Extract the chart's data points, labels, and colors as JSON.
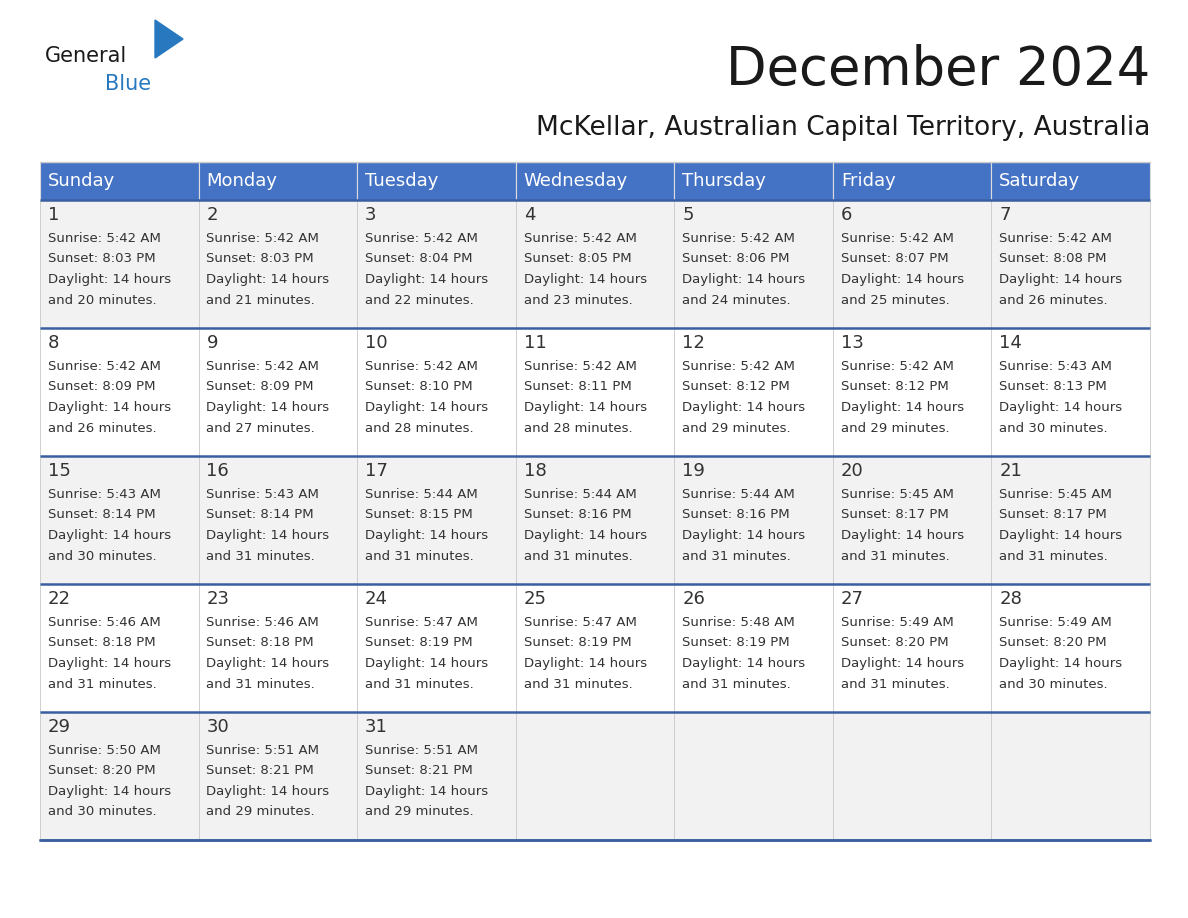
{
  "title": "December 2024",
  "subtitle": "McKellar, Australian Capital Territory, Australia",
  "header_color": "#4472C4",
  "header_text_color": "#FFFFFF",
  "cell_bg_even": "#F2F2F2",
  "cell_bg_odd": "#FFFFFF",
  "separator_color": "#3A5FA0",
  "grid_color": "#CCCCCC",
  "day_headers": [
    "Sunday",
    "Monday",
    "Tuesday",
    "Wednesday",
    "Thursday",
    "Friday",
    "Saturday"
  ],
  "title_fontsize": 38,
  "subtitle_fontsize": 19,
  "header_fontsize": 13,
  "day_num_fontsize": 13,
  "cell_fontsize": 9.5,
  "logo_text1": "General",
  "logo_text2": "Blue",
  "logo_color1": "#1a1a1a",
  "logo_color2": "#2878C0",
  "logo_triangle_color": "#2878C0",
  "days_data": [
    {
      "day": 1,
      "row": 0,
      "col": 0,
      "sunrise": "5:42 AM",
      "sunset": "8:03 PM",
      "daylight_hours": 14,
      "daylight_minutes": 20
    },
    {
      "day": 2,
      "row": 0,
      "col": 1,
      "sunrise": "5:42 AM",
      "sunset": "8:03 PM",
      "daylight_hours": 14,
      "daylight_minutes": 21
    },
    {
      "day": 3,
      "row": 0,
      "col": 2,
      "sunrise": "5:42 AM",
      "sunset": "8:04 PM",
      "daylight_hours": 14,
      "daylight_minutes": 22
    },
    {
      "day": 4,
      "row": 0,
      "col": 3,
      "sunrise": "5:42 AM",
      "sunset": "8:05 PM",
      "daylight_hours": 14,
      "daylight_minutes": 23
    },
    {
      "day": 5,
      "row": 0,
      "col": 4,
      "sunrise": "5:42 AM",
      "sunset": "8:06 PM",
      "daylight_hours": 14,
      "daylight_minutes": 24
    },
    {
      "day": 6,
      "row": 0,
      "col": 5,
      "sunrise": "5:42 AM",
      "sunset": "8:07 PM",
      "daylight_hours": 14,
      "daylight_minutes": 25
    },
    {
      "day": 7,
      "row": 0,
      "col": 6,
      "sunrise": "5:42 AM",
      "sunset": "8:08 PM",
      "daylight_hours": 14,
      "daylight_minutes": 26
    },
    {
      "day": 8,
      "row": 1,
      "col": 0,
      "sunrise": "5:42 AM",
      "sunset": "8:09 PM",
      "daylight_hours": 14,
      "daylight_minutes": 26
    },
    {
      "day": 9,
      "row": 1,
      "col": 1,
      "sunrise": "5:42 AM",
      "sunset": "8:09 PM",
      "daylight_hours": 14,
      "daylight_minutes": 27
    },
    {
      "day": 10,
      "row": 1,
      "col": 2,
      "sunrise": "5:42 AM",
      "sunset": "8:10 PM",
      "daylight_hours": 14,
      "daylight_minutes": 28
    },
    {
      "day": 11,
      "row": 1,
      "col": 3,
      "sunrise": "5:42 AM",
      "sunset": "8:11 PM",
      "daylight_hours": 14,
      "daylight_minutes": 28
    },
    {
      "day": 12,
      "row": 1,
      "col": 4,
      "sunrise": "5:42 AM",
      "sunset": "8:12 PM",
      "daylight_hours": 14,
      "daylight_minutes": 29
    },
    {
      "day": 13,
      "row": 1,
      "col": 5,
      "sunrise": "5:42 AM",
      "sunset": "8:12 PM",
      "daylight_hours": 14,
      "daylight_minutes": 29
    },
    {
      "day": 14,
      "row": 1,
      "col": 6,
      "sunrise": "5:43 AM",
      "sunset": "8:13 PM",
      "daylight_hours": 14,
      "daylight_minutes": 30
    },
    {
      "day": 15,
      "row": 2,
      "col": 0,
      "sunrise": "5:43 AM",
      "sunset": "8:14 PM",
      "daylight_hours": 14,
      "daylight_minutes": 30
    },
    {
      "day": 16,
      "row": 2,
      "col": 1,
      "sunrise": "5:43 AM",
      "sunset": "8:14 PM",
      "daylight_hours": 14,
      "daylight_minutes": 31
    },
    {
      "day": 17,
      "row": 2,
      "col": 2,
      "sunrise": "5:44 AM",
      "sunset": "8:15 PM",
      "daylight_hours": 14,
      "daylight_minutes": 31
    },
    {
      "day": 18,
      "row": 2,
      "col": 3,
      "sunrise": "5:44 AM",
      "sunset": "8:16 PM",
      "daylight_hours": 14,
      "daylight_minutes": 31
    },
    {
      "day": 19,
      "row": 2,
      "col": 4,
      "sunrise": "5:44 AM",
      "sunset": "8:16 PM",
      "daylight_hours": 14,
      "daylight_minutes": 31
    },
    {
      "day": 20,
      "row": 2,
      "col": 5,
      "sunrise": "5:45 AM",
      "sunset": "8:17 PM",
      "daylight_hours": 14,
      "daylight_minutes": 31
    },
    {
      "day": 21,
      "row": 2,
      "col": 6,
      "sunrise": "5:45 AM",
      "sunset": "8:17 PM",
      "daylight_hours": 14,
      "daylight_minutes": 31
    },
    {
      "day": 22,
      "row": 3,
      "col": 0,
      "sunrise": "5:46 AM",
      "sunset": "8:18 PM",
      "daylight_hours": 14,
      "daylight_minutes": 31
    },
    {
      "day": 23,
      "row": 3,
      "col": 1,
      "sunrise": "5:46 AM",
      "sunset": "8:18 PM",
      "daylight_hours": 14,
      "daylight_minutes": 31
    },
    {
      "day": 24,
      "row": 3,
      "col": 2,
      "sunrise": "5:47 AM",
      "sunset": "8:19 PM",
      "daylight_hours": 14,
      "daylight_minutes": 31
    },
    {
      "day": 25,
      "row": 3,
      "col": 3,
      "sunrise": "5:47 AM",
      "sunset": "8:19 PM",
      "daylight_hours": 14,
      "daylight_minutes": 31
    },
    {
      "day": 26,
      "row": 3,
      "col": 4,
      "sunrise": "5:48 AM",
      "sunset": "8:19 PM",
      "daylight_hours": 14,
      "daylight_minutes": 31
    },
    {
      "day": 27,
      "row": 3,
      "col": 5,
      "sunrise": "5:49 AM",
      "sunset": "8:20 PM",
      "daylight_hours": 14,
      "daylight_minutes": 31
    },
    {
      "day": 28,
      "row": 3,
      "col": 6,
      "sunrise": "5:49 AM",
      "sunset": "8:20 PM",
      "daylight_hours": 14,
      "daylight_minutes": 30
    },
    {
      "day": 29,
      "row": 4,
      "col": 0,
      "sunrise": "5:50 AM",
      "sunset": "8:20 PM",
      "daylight_hours": 14,
      "daylight_minutes": 30
    },
    {
      "day": 30,
      "row": 4,
      "col": 1,
      "sunrise": "5:51 AM",
      "sunset": "8:21 PM",
      "daylight_hours": 14,
      "daylight_minutes": 29
    },
    {
      "day": 31,
      "row": 4,
      "col": 2,
      "sunrise": "5:51 AM",
      "sunset": "8:21 PM",
      "daylight_hours": 14,
      "daylight_minutes": 29
    }
  ]
}
